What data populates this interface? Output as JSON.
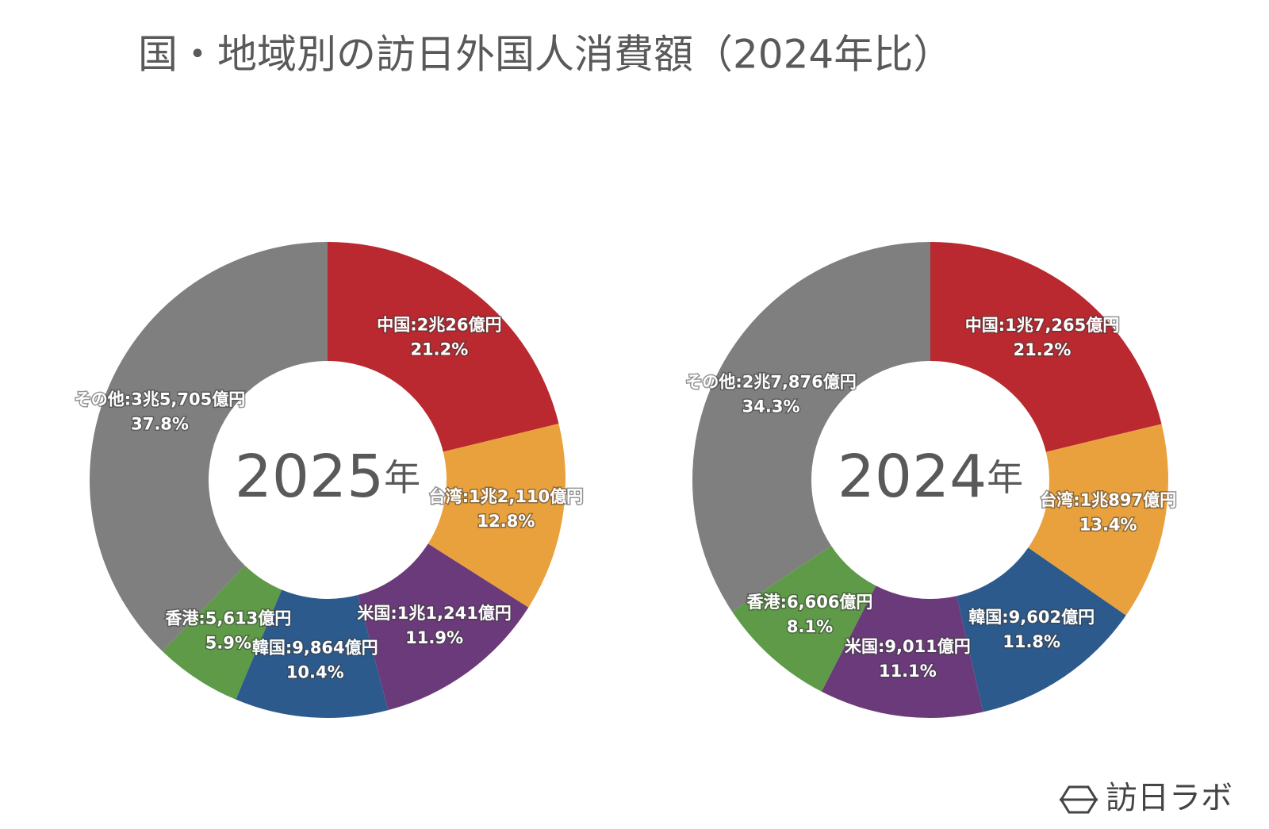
{
  "title": "国・地域別の訪日外国人消費額（2024年比）",
  "logo": "訪日ラボ",
  "chart_data": [
    {
      "type": "donut",
      "center_text": "2025",
      "center_unit": "年",
      "labels": [
        "中国:2兆26億円",
        "台湾:1兆2,110億円",
        "米国:1兆1,241億円",
        "韓国:9,864億円",
        "香港:5,613億円",
        "その他:3兆5,705億円"
      ],
      "values": [
        21.2,
        12.8,
        11.9,
        10.4,
        5.9,
        37.8
      ],
      "value_labels": [
        "21.2%",
        "12.8%",
        "11.9%",
        "10.4%",
        "5.9%",
        "37.8%"
      ],
      "colors": [
        "#b9292f",
        "#e8a13d",
        "#6b3a7a",
        "#2c5a8c",
        "#5e9a47",
        "#7f7f7f"
      ]
    },
    {
      "type": "donut",
      "center_text": "2024",
      "center_unit": "年",
      "labels": [
        "中国:1兆7,265億円",
        "台湾:1兆897億円",
        "韓国:9,602億円",
        "米国:9,011億円",
        "香港:6,606億円",
        "その他:2兆7,876億円"
      ],
      "values": [
        21.2,
        13.4,
        11.8,
        11.1,
        8.1,
        34.3
      ],
      "value_labels": [
        "21.2%",
        "13.4%",
        "11.8%",
        "11.1%",
        "8.1%",
        "34.3%"
      ],
      "colors": [
        "#b9292f",
        "#e8a13d",
        "#2c5a8c",
        "#6b3a7a",
        "#5e9a47",
        "#7f7f7f"
      ]
    }
  ]
}
